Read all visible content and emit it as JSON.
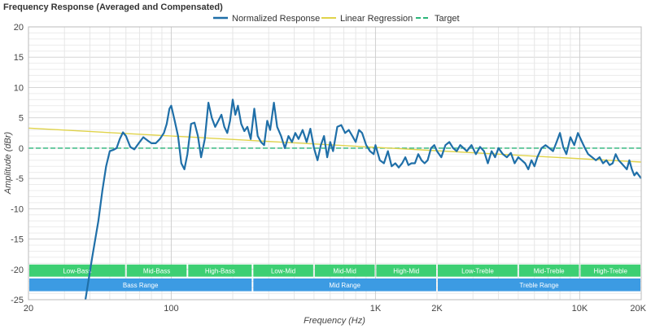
{
  "chart_data": {
    "type": "line",
    "title": "Frequency Response (Averaged and Compensated)",
    "xlabel": "Frequency (Hz)",
    "ylabel": "Amplitude (dBr)",
    "x_scale": "log",
    "xlim": [
      20,
      20000
    ],
    "ylim": [
      -25,
      20
    ],
    "x_tick_labels": [
      {
        "value": 20,
        "label": "20"
      },
      {
        "value": 100,
        "label": "100"
      },
      {
        "value": 1000,
        "label": "1K"
      },
      {
        "value": 2000,
        "label": "2K"
      },
      {
        "value": 10000,
        "label": "10K"
      },
      {
        "value": 20000,
        "label": "20K"
      }
    ],
    "y_ticks": [
      20,
      15,
      10,
      5,
      0,
      -5,
      -10,
      -15,
      -20,
      -25
    ],
    "grid": true,
    "legend": {
      "placement": "top-center"
    },
    "series": [
      {
        "name": "Normalized Response",
        "color": "#1f6fa8",
        "style": "solid",
        "x": [
          38,
          41,
          44,
          46,
          48,
          50,
          52,
          54,
          56,
          58,
          60,
          63,
          66,
          70,
          73,
          77,
          80,
          84,
          88,
          92,
          95,
          98,
          100,
          104,
          108,
          112,
          116,
          120,
          125,
          130,
          135,
          140,
          146,
          152,
          158,
          164,
          170,
          176,
          182,
          188,
          194,
          200,
          206,
          212,
          220,
          228,
          236,
          245,
          255,
          265,
          275,
          285,
          295,
          305,
          318,
          330,
          345,
          360,
          375,
          390,
          405,
          420,
          440,
          460,
          480,
          500,
          520,
          540,
          560,
          580,
          600,
          620,
          650,
          680,
          710,
          740,
          770,
          800,
          830,
          860,
          900,
          940,
          980,
          1000,
          1050,
          1100,
          1150,
          1200,
          1250,
          1300,
          1350,
          1400,
          1450,
          1500,
          1560,
          1620,
          1680,
          1740,
          1800,
          1870,
          1940,
          2000,
          2100,
          2200,
          2300,
          2400,
          2500,
          2600,
          2700,
          2800,
          2950,
          3100,
          3250,
          3400,
          3550,
          3700,
          3850,
          4000,
          4200,
          4400,
          4600,
          4800,
          5000,
          5200,
          5400,
          5600,
          5800,
          6000,
          6200,
          6500,
          6800,
          7100,
          7400,
          7700,
          8000,
          8300,
          8600,
          9000,
          9400,
          9800,
          10200,
          10600,
          11000,
          11500,
          12000,
          12500,
          13000,
          13500,
          14000,
          14500,
          15000,
          15500,
          16000,
          16500,
          17000,
          17500,
          18000,
          18500,
          19000,
          19500,
          20000
        ],
        "y": [
          -25,
          -18,
          -12,
          -7,
          -3,
          -0.5,
          -0.3,
          0,
          1.5,
          2.6,
          2.0,
          0.2,
          -0.2,
          1.0,
          1.8,
          1.2,
          0.8,
          0.8,
          1.5,
          2.5,
          4.0,
          6.5,
          7.0,
          4.5,
          2.0,
          -2.5,
          -3.5,
          -1.0,
          4.0,
          4.2,
          2.0,
          -1.5,
          1.5,
          7.5,
          5.0,
          3.5,
          4.5,
          5.5,
          3.5,
          2.5,
          4.5,
          8.0,
          5.5,
          7.0,
          4.0,
          2.8,
          3.5,
          1.5,
          6.5,
          2.0,
          1.0,
          0.5,
          4.5,
          3.0,
          7.5,
          3.5,
          2.0,
          0,
          2.0,
          1.0,
          2.5,
          1.5,
          3.0,
          1.0,
          3.2,
          0.0,
          -2.0,
          0.5,
          2.0,
          -1.5,
          1.0,
          -0.5,
          3.5,
          3.8,
          2.5,
          3.0,
          2.0,
          1.0,
          3.0,
          2.5,
          0.5,
          -0.5,
          -1.0,
          0.5,
          -2.0,
          -2.5,
          -0.5,
          -3.0,
          -2.5,
          -3.2,
          -2.5,
          -1.5,
          -2.8,
          -2.5,
          -2.5,
          -1.0,
          -2.0,
          -2.5,
          -2.0,
          0.0,
          0.5,
          -0.5,
          -1.5,
          0.5,
          1.0,
          0.0,
          -0.5,
          0.5,
          0.0,
          -0.5,
          0.5,
          -1.0,
          0.2,
          -0.5,
          -2.5,
          -0.5,
          -1.5,
          0.0,
          -1.0,
          -1.5,
          -0.8,
          -2.5,
          -1.5,
          -2.0,
          -2.5,
          -3.5,
          -2.0,
          -3.0,
          -1.5,
          0.0,
          0.5,
          0.0,
          -0.5,
          1.0,
          2.5,
          0.2,
          -1.0,
          1.8,
          0.5,
          2.5,
          1.2,
          0.0,
          -1.0,
          -1.5,
          -2.0,
          -1.5,
          -2.5,
          -2.0,
          -2.8,
          -2.5,
          -1.0,
          -2.0,
          -2.5,
          -3.0,
          -3.5,
          -2.0,
          -3.5,
          -4.5,
          -4.0,
          -4.5,
          -5.0
        ]
      },
      {
        "name": "Linear Regression",
        "color": "#e0d34a",
        "style": "solid",
        "x": [
          20,
          20000
        ],
        "y": [
          3.3,
          -2.3
        ]
      },
      {
        "name": "Target",
        "color": "#2bb57a",
        "style": "dashed",
        "x": [
          20,
          20000
        ],
        "y": [
          0,
          0
        ]
      }
    ],
    "bands": [
      {
        "label": "Low-Bass",
        "from": 20,
        "to": 60,
        "color": "#3dcf73",
        "row": 1
      },
      {
        "label": "Mid-Bass",
        "from": 60,
        "to": 120,
        "color": "#3dcf73",
        "row": 1
      },
      {
        "label": "High-Bass",
        "from": 120,
        "to": 250,
        "color": "#3dcf73",
        "row": 1
      },
      {
        "label": "Low-Mid",
        "from": 250,
        "to": 500,
        "color": "#3dcf73",
        "row": 1
      },
      {
        "label": "Mid-Mid",
        "from": 500,
        "to": 1000,
        "color": "#3dcf73",
        "row": 1
      },
      {
        "label": "High-Mid",
        "from": 1000,
        "to": 2000,
        "color": "#3dcf73",
        "row": 1
      },
      {
        "label": "Low-Treble",
        "from": 2000,
        "to": 5000,
        "color": "#3dcf73",
        "row": 1
      },
      {
        "label": "Mid-Treble",
        "from": 5000,
        "to": 10000,
        "color": "#3dcf73",
        "row": 1
      },
      {
        "label": "High-Treble",
        "from": 10000,
        "to": 20000,
        "color": "#3dcf73",
        "row": 1
      },
      {
        "label": "Bass Range",
        "from": 20,
        "to": 250,
        "color": "#3c9be3",
        "row": 2
      },
      {
        "label": "Mid Range",
        "from": 250,
        "to": 2000,
        "color": "#3c9be3",
        "row": 2
      },
      {
        "label": "Treble Range",
        "from": 2000,
        "to": 20000,
        "color": "#3c9be3",
        "row": 2
      }
    ]
  }
}
